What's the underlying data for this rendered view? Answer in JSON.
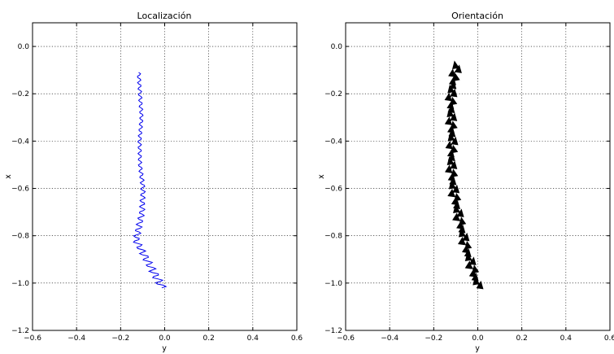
{
  "chart_data": [
    {
      "type": "line",
      "title": "Localización",
      "xlabel": "y",
      "ylabel": "x",
      "xlim": [
        -0.6,
        0.6
      ],
      "ylim": [
        -1.2,
        0.1
      ],
      "xticks": [
        "−0.6",
        "−0.4",
        "−0.2",
        "0.0",
        "0.2",
        "0.4",
        "0.6"
      ],
      "yticks": [
        "0.0",
        "−0.2",
        "−0.4",
        "−0.6",
        "−0.8",
        "−1.0",
        "−1.2"
      ],
      "grid": true,
      "color": "#0000ee",
      "series": [
        {
          "x": [
            -0.118,
            -0.112,
            -0.105,
            -0.114,
            -0.112,
            -0.098,
            -0.103,
            -0.13
          ],
          "y": [
            -0.11,
            -0.2,
            -0.3,
            -0.4,
            -0.5,
            -0.6,
            -0.7,
            -0.82
          ],
          "note_values": [
            0,
            0
          ]
        }
      ]
    },
    {
      "type": "line",
      "title": "Orientación",
      "xlabel": "y",
      "ylabel": "x",
      "xlim": [
        -0.6,
        0.6
      ],
      "ylim": [
        -1.2,
        0.1
      ],
      "xticks": [
        "−0.6",
        "−0.4",
        "−0.2",
        "0.0",
        "0.2",
        "0.4",
        "0.6"
      ],
      "yticks": [
        "0.0",
        "−0.2",
        "−0.4",
        "−0.6",
        "−0.8",
        "−1.0",
        "−1.2"
      ],
      "grid": true,
      "color": "#000000",
      "series": [
        {
          "x": [
            -0.095,
            -0.105,
            -0.12,
            -0.12,
            -0.115,
            -0.12,
            -0.11,
            -0.09,
            -0.07,
            -0.05,
            -0.025,
            -0.015,
            0.0
          ],
          "y": [
            -0.08,
            -0.12,
            -0.2,
            -0.3,
            -0.4,
            -0.5,
            -0.6,
            -0.7,
            -0.78,
            -0.86,
            -0.93,
            -0.97,
            -1.0
          ],
          "markers": "arrow"
        }
      ]
    }
  ]
}
